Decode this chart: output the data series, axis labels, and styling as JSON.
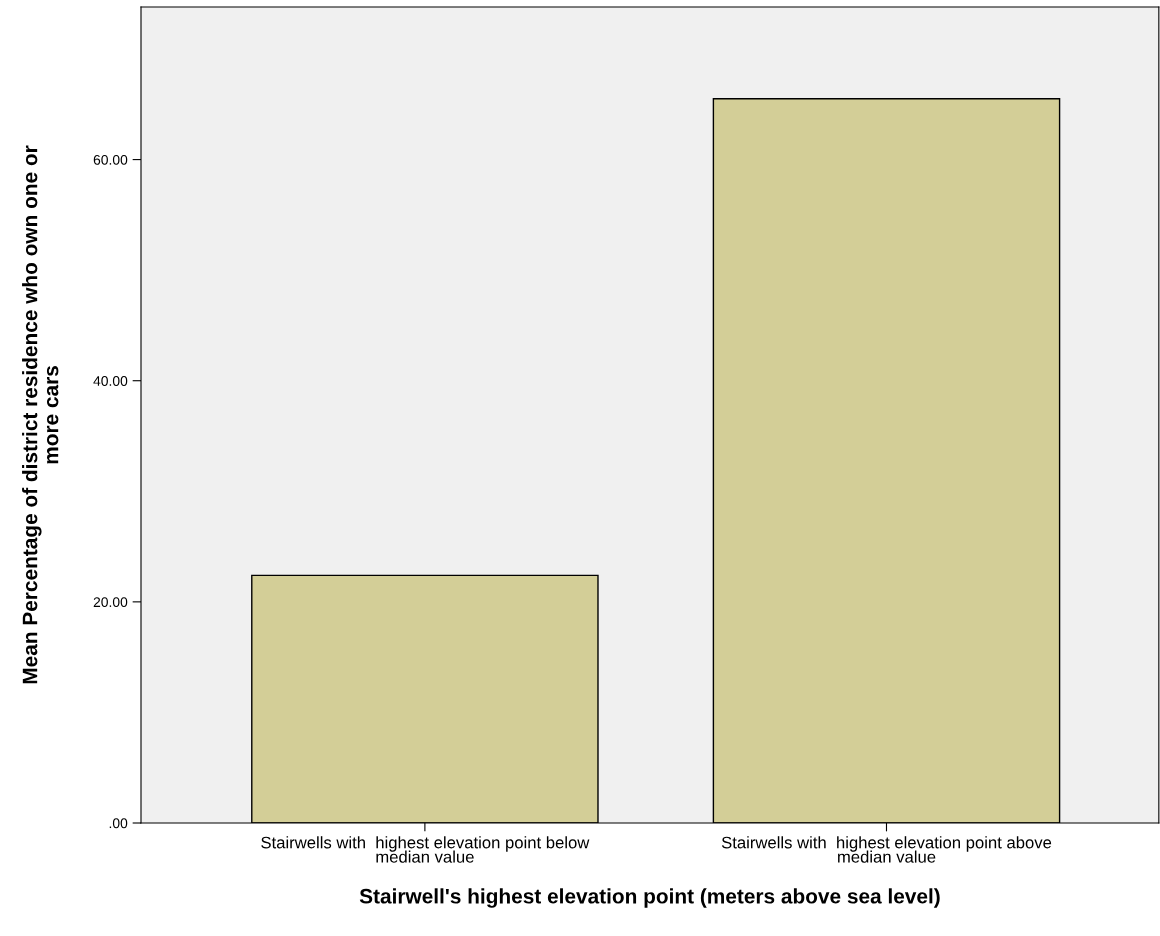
{
  "chart_data": {
    "type": "bar",
    "categories": [
      "Stairwells with  highest elevation point below\nmedian value",
      "Stairwells with  highest elevation point above\nmedian value"
    ],
    "values": [
      22.4,
      65.5
    ],
    "color": "#d3ce97",
    "xlabel": "Stairwell's highest elevation point (meters above sea level)",
    "ylabel": "Mean Percentage of district residence who own one or\nmore cars",
    "ylim": [
      0,
      73.8
    ],
    "yticks": [
      {
        "value": 0,
        "label": ".00"
      },
      {
        "value": 20,
        "label": "20.00"
      },
      {
        "value": 40,
        "label": "40.00"
      },
      {
        "value": 60,
        "label": "60.00"
      }
    ],
    "grid": false
  }
}
